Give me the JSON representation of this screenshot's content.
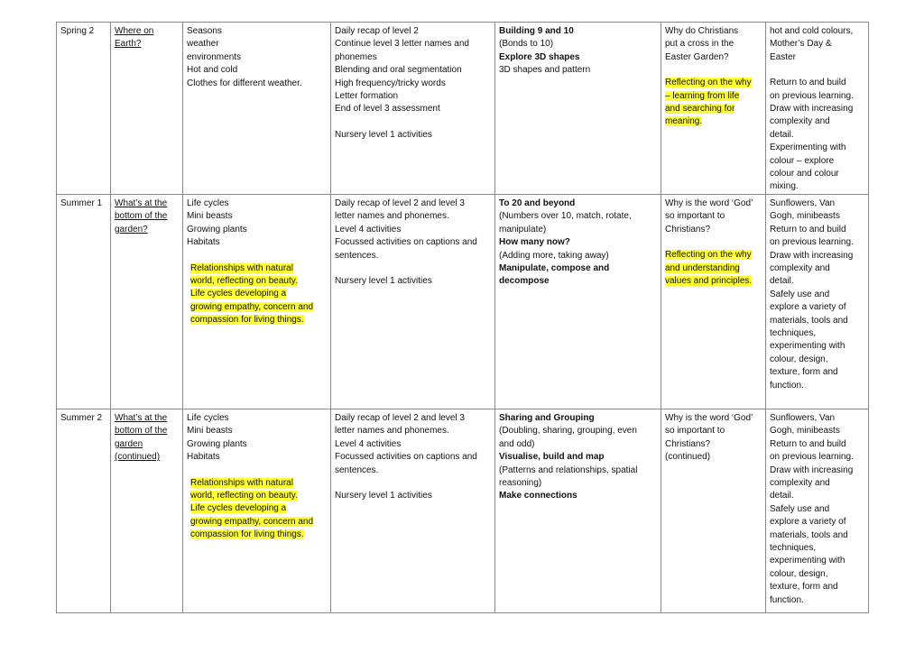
{
  "table": {
    "rows": [
      [
        [
          {
            "lines": [
              "Spring 2"
            ]
          }
        ],
        [
          {
            "lines": [
              "Where on",
              "Earth?"
            ],
            "underline": true
          }
        ],
        [
          {
            "lines": [
              "Seasons",
              "weather",
              "environments",
              "Hot and cold",
              "Clothes for different weather."
            ]
          }
        ],
        [
          {
            "lines": [
              "Daily recap of level 2",
              "Continue level 3 letter names and",
              "phonemes",
              "Blending and oral segmentation",
              "High frequency/tricky words",
              "Letter formation",
              "End of level 3 assessment"
            ]
          },
          {
            "lines": [
              "Nursery level 1 activities"
            ],
            "space_before": true
          }
        ],
        [
          {
            "lines": [
              "Building 9 and 10"
            ],
            "bold": true
          },
          {
            "lines": [
              "(Bonds to 10)"
            ]
          },
          {
            "lines": [
              "Explore 3D shapes"
            ],
            "bold": true
          },
          {
            "lines": [
              "3D shapes and pattern"
            ]
          }
        ],
        [
          {
            "lines": [
              "Why do Christians",
              "put a cross in the",
              "Easter Garden?"
            ]
          },
          {
            "lines": [
              "Reflecting on the why",
              "– learning from life",
              "and searching for",
              "meaning."
            ],
            "highlight": true,
            "space_before": true
          }
        ],
        [
          {
            "lines": [
              "hot and cold colours,",
              "Mother’s Day &",
              "Easter"
            ]
          },
          {
            "lines": [
              "Return to and build",
              "on previous learning.",
              "Draw with increasing",
              "complexity and",
              "detail.",
              "Experimenting with",
              "colour – explore",
              "colour and colour",
              "mixing."
            ],
            "space_before": true
          }
        ]
      ],
      [
        [
          {
            "lines": [
              "Summer 1"
            ]
          }
        ],
        [
          {
            "lines": [
              "What’s at the",
              "bottom of the",
              "garden?"
            ],
            "underline": true
          }
        ],
        [
          {
            "lines": [
              "Life cycles",
              "Mini beasts",
              "Growing plants",
              "Habitats"
            ]
          },
          {
            "lines": [
              "Relationships with natural",
              "world, reflecting on beauty.",
              "Life cycles developing a",
              "growing empathy, concern and",
              "compassion for living things."
            ],
            "highlight": true,
            "space_before": true
          }
        ],
        [
          {
            "lines": [
              "Daily recap of level 2 and level 3",
              "letter names and phonemes."
            ]
          },
          {
            "lines": [
              "Level 4 activities"
            ]
          },
          {
            "lines": [
              "Focussed activities on captions and",
              "sentences."
            ]
          },
          {
            "lines": [
              "Nursery level 1 activities"
            ],
            "space_before": true
          }
        ],
        [
          {
            "lines": [
              "To 20 and beyond"
            ],
            "bold": true
          },
          {
            "lines": [
              "(Numbers over 10, match, rotate,",
              "manipulate)"
            ]
          },
          {
            "lines": [
              "How many now?"
            ],
            "bold": true
          },
          {
            "lines": [
              "(Adding more, taking away)"
            ]
          },
          {
            "lines": [
              "Manipulate, compose and",
              "decompose"
            ],
            "bold": true
          }
        ],
        [
          {
            "lines": [
              "Why is the word ‘God’",
              "so important to",
              "Christians?"
            ]
          },
          {
            "lines": [
              "Reflecting on the why",
              "and understanding",
              "values and principles."
            ],
            "highlight": true,
            "space_before": true
          }
        ],
        [
          {
            "lines": [
              "Sunflowers, Van",
              "Gogh, minibeasts"
            ]
          },
          {
            "lines": [
              "Return to and build",
              "on previous learning.",
              "Draw with increasing",
              "complexity and",
              "detail.",
              "Safely use and",
              "explore a variety of",
              "materials, tools and",
              "techniques,",
              "experimenting with",
              "colour, design,",
              "texture, form and",
              "function."
            ]
          }
        ]
      ],
      [
        [
          {
            "lines": [
              "Summer 2"
            ]
          }
        ],
        [
          {
            "lines": [
              "What’s at the",
              "bottom of the",
              "garden",
              "(continued)"
            ],
            "underline": true
          }
        ],
        [
          {
            "lines": [
              "Life cycles",
              "Mini beasts",
              "Growing plants",
              "Habitats"
            ]
          },
          {
            "lines": [
              "Relationships with natural",
              "world, reflecting on beauty.",
              "Life cycles developing a",
              "growing empathy, concern and",
              "compassion for living things."
            ],
            "highlight": true,
            "space_before": true
          }
        ],
        [
          {
            "lines": [
              "Daily recap of level 2 and level 3",
              "letter names and phonemes."
            ]
          },
          {
            "lines": [
              "Level 4 activities"
            ]
          },
          {
            "lines": [
              "Focussed activities on captions and",
              "sentences."
            ]
          },
          {
            "lines": [
              "Nursery level 1 activities"
            ],
            "space_before": true
          }
        ],
        [
          {
            "lines": [
              "Sharing and Grouping"
            ],
            "bold": true
          },
          {
            "lines": [
              "(Doubling, sharing, grouping, even",
              "and odd)"
            ]
          },
          {
            "lines": [
              "Visualise, build and map"
            ],
            "bold": true
          },
          {
            "lines": [
              "(Patterns and relationships, spatial",
              "reasoning)"
            ]
          },
          {
            "lines": [
              "Make connections"
            ],
            "bold": true
          }
        ],
        [
          {
            "lines": [
              "Why is the word ‘God’",
              "so important to",
              "Christians?",
              "(continued)"
            ]
          }
        ],
        [
          {
            "lines": [
              "Sunflowers, Van",
              "Gogh, minibeasts"
            ]
          },
          {
            "lines": [
              "Return to and build",
              "on previous learning.",
              "Draw with increasing",
              "complexity and",
              "detail.",
              "Safely use and",
              "explore a variety of",
              "materials, tools and",
              "techniques,",
              "experimenting with",
              "colour, design,",
              "texture, form and",
              "function."
            ]
          }
        ]
      ]
    ]
  }
}
